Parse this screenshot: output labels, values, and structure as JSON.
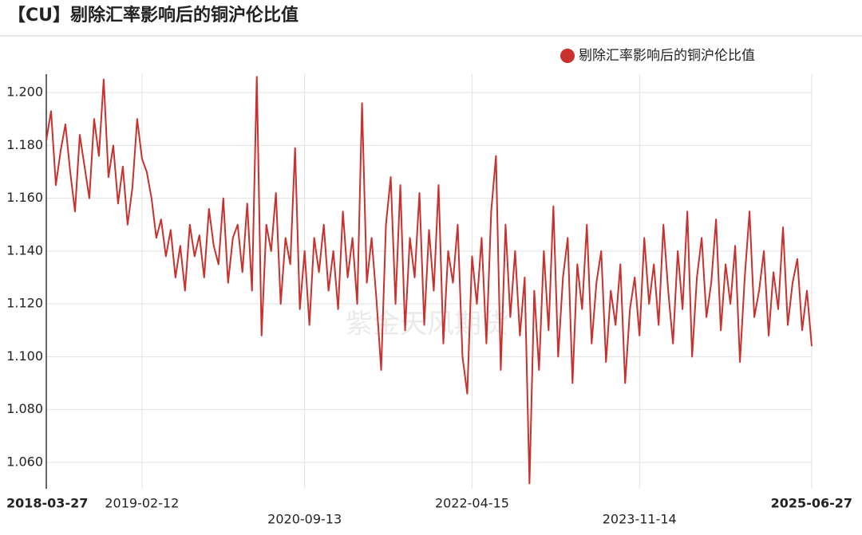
{
  "chart_data": {
    "type": "line",
    "title": "【CU】剔除汇率影响后的铜沪伦比值",
    "watermark": "紫金天风期货",
    "legend": "top-right",
    "grid": true,
    "ylim": [
      1.05,
      1.207
    ],
    "yticks": [
      {
        "value": 1.06,
        "label": "1.060"
      },
      {
        "value": 1.08,
        "label": "1.080"
      },
      {
        "value": 1.1,
        "label": "1.100"
      },
      {
        "value": 1.12,
        "label": "1.120"
      },
      {
        "value": 1.14,
        "label": "1.140"
      },
      {
        "value": 1.16,
        "label": "1.160"
      },
      {
        "value": 1.18,
        "label": "1.180"
      },
      {
        "value": 1.2,
        "label": "1.200"
      }
    ],
    "categories": [
      "2018-03-27",
      null,
      null,
      null,
      null,
      null,
      null,
      null,
      null,
      null,
      null,
      null,
      null,
      null,
      null,
      null,
      null,
      null,
      null,
      null,
      "2019-02-12",
      null,
      null,
      null,
      null,
      null,
      null,
      null,
      null,
      null,
      null,
      null,
      null,
      null,
      null,
      null,
      null,
      null,
      null,
      null,
      null,
      null,
      null,
      null,
      null,
      null,
      null,
      null,
      null,
      null,
      null,
      null,
      null,
      null,
      "2020-09-13",
      null,
      null,
      null,
      null,
      null,
      null,
      null,
      null,
      null,
      null,
      null,
      null,
      null,
      null,
      null,
      null,
      null,
      null,
      null,
      null,
      null,
      null,
      null,
      null,
      null,
      null,
      null,
      null,
      null,
      null,
      null,
      null,
      null,
      null,
      "2022-04-15",
      null,
      null,
      null,
      null,
      null,
      null,
      null,
      null,
      null,
      null,
      null,
      null,
      null,
      null,
      null,
      null,
      null,
      null,
      null,
      null,
      null,
      null,
      null,
      null,
      null,
      null,
      null,
      null,
      null,
      null,
      null,
      null,
      null,
      null,
      "2023-11-14",
      null,
      null,
      null,
      null,
      null,
      null,
      null,
      null,
      null,
      null,
      null,
      null,
      null,
      null,
      null,
      null,
      null,
      null,
      null,
      null,
      null,
      null,
      null,
      null,
      null,
      null,
      null,
      null,
      null,
      null,
      null,
      null,
      null,
      null,
      null,
      "2025-06-27"
    ],
    "series": [
      {
        "name": "剔除汇率影响后的铜沪伦比值",
        "color": "#c8312d",
        "values": [
          1.182,
          1.193,
          1.165,
          1.178,
          1.188,
          1.17,
          1.155,
          1.184,
          1.172,
          1.16,
          1.19,
          1.176,
          1.205,
          1.168,
          1.18,
          1.158,
          1.172,
          1.15,
          1.164,
          1.19,
          1.175,
          1.17,
          1.16,
          1.145,
          1.152,
          1.138,
          1.148,
          1.13,
          1.142,
          1.125,
          1.15,
          1.138,
          1.146,
          1.13,
          1.156,
          1.142,
          1.135,
          1.16,
          1.128,
          1.145,
          1.15,
          1.132,
          1.158,
          1.125,
          1.206,
          1.108,
          1.15,
          1.14,
          1.162,
          1.12,
          1.145,
          1.135,
          1.179,
          1.118,
          1.14,
          1.112,
          1.145,
          1.132,
          1.15,
          1.125,
          1.14,
          1.118,
          1.155,
          1.13,
          1.145,
          1.12,
          1.196,
          1.128,
          1.145,
          1.122,
          1.095,
          1.15,
          1.168,
          1.12,
          1.165,
          1.11,
          1.145,
          1.13,
          1.162,
          1.112,
          1.148,
          1.125,
          1.165,
          1.105,
          1.14,
          1.128,
          1.15,
          1.1,
          1.086,
          1.138,
          1.12,
          1.145,
          1.105,
          1.155,
          1.176,
          1.095,
          1.15,
          1.115,
          1.14,
          1.108,
          1.13,
          1.052,
          1.125,
          1.095,
          1.14,
          1.11,
          1.157,
          1.1,
          1.13,
          1.145,
          1.09,
          1.135,
          1.118,
          1.15,
          1.105,
          1.128,
          1.14,
          1.098,
          1.125,
          1.112,
          1.135,
          1.09,
          1.118,
          1.13,
          1.108,
          1.145,
          1.12,
          1.135,
          1.112,
          1.15,
          1.125,
          1.105,
          1.14,
          1.118,
          1.155,
          1.1,
          1.13,
          1.145,
          1.115,
          1.128,
          1.152,
          1.11,
          1.135,
          1.12,
          1.142,
          1.098,
          1.13,
          1.155,
          1.115,
          1.125,
          1.14,
          1.108,
          1.132,
          1.118,
          1.149,
          1.112,
          1.128,
          1.137,
          1.11,
          1.125,
          1.104
        ]
      }
    ]
  }
}
